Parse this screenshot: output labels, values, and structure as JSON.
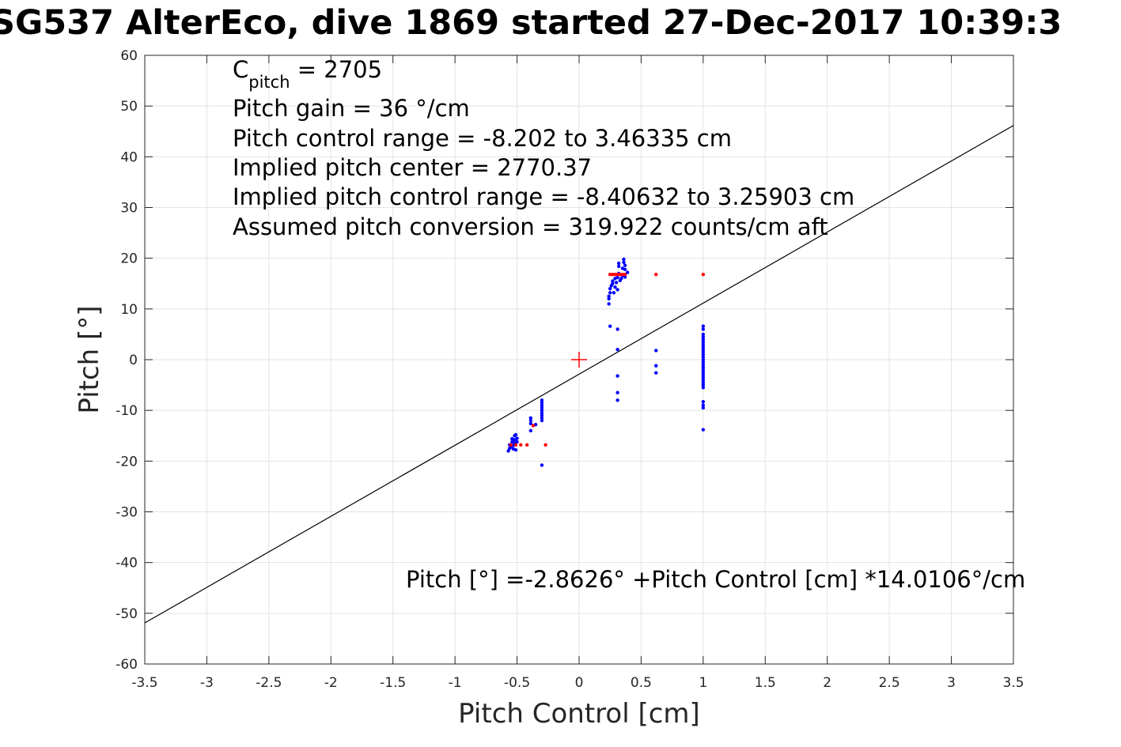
{
  "chart_data": {
    "type": "scatter",
    "title": "SG537 AlterEco, dive 1869 started 27-Dec-2017 10:39:3",
    "xlabel": "Pitch Control [cm]",
    "ylabel": "Pitch [°]",
    "xlim": [
      -3.5,
      3.5
    ],
    "ylim": [
      -60,
      60
    ],
    "grid": true,
    "x_ticks": [
      -3.5,
      -3,
      -2.5,
      -2,
      -1.5,
      -1,
      -0.5,
      0,
      0.5,
      1,
      1.5,
      2,
      2.5,
      3,
      3.5
    ],
    "x_tick_labels": [
      "-3.5",
      "-3",
      "-2.5",
      "-2",
      "-1.5",
      "-1",
      "-0.5",
      "0",
      "0.5",
      "1",
      "1.5",
      "2",
      "2.5",
      "3",
      "3.5"
    ],
    "y_ticks": [
      -60,
      -50,
      -40,
      -30,
      -20,
      -10,
      0,
      10,
      20,
      30,
      40,
      50,
      60
    ],
    "y_tick_labels": [
      "-60",
      "-50",
      "-40",
      "-30",
      "-20",
      "-10",
      "0",
      "10",
      "20",
      "30",
      "40",
      "50",
      "60"
    ],
    "fit_line": {
      "intercept": -2.8626,
      "slope": 14.0106,
      "color": "#000000"
    },
    "center_marker": {
      "x": 0,
      "y": 0,
      "color": "#ff0000"
    },
    "annotations": {
      "cpitch_base": "C",
      "cpitch_sub": "pitch",
      "cpitch_value": " = 2705",
      "pitch_gain": "Pitch gain = 36 °/cm",
      "control_range": "Pitch control range = -8.202 to 3.46335 cm",
      "implied_center": "Implied pitch center = 2770.37",
      "implied_range": "Implied pitch control range = -8.40632 to 3.25903 cm",
      "conversion": "Assumed pitch conversion = 319.922 counts/cm aft",
      "fit_equation": "Pitch [°] =-2.8626° +Pitch Control [cm] *14.0106°/cm"
    },
    "series": [
      {
        "color": "#0000ff",
        "points": [
          [
            -0.57,
            -18.0
          ],
          [
            -0.56,
            -17.5
          ],
          [
            -0.56,
            -16.8
          ],
          [
            -0.55,
            -17.2
          ],
          [
            -0.54,
            -16.2
          ],
          [
            -0.54,
            -15.6
          ],
          [
            -0.53,
            -17.6
          ],
          [
            -0.53,
            -16.9
          ],
          [
            -0.52,
            -15.0
          ],
          [
            -0.52,
            -15.8
          ],
          [
            -0.52,
            -16.5
          ],
          [
            -0.51,
            -17.8
          ],
          [
            -0.51,
            -14.8
          ],
          [
            -0.5,
            -15.5
          ],
          [
            -0.5,
            -16.2
          ],
          [
            -0.39,
            -11.5
          ],
          [
            -0.39,
            -12.0
          ],
          [
            -0.39,
            -12.6
          ],
          [
            -0.39,
            -14.0
          ],
          [
            -0.35,
            -12.8
          ],
          [
            -0.3,
            -8.0
          ],
          [
            -0.3,
            -8.5
          ],
          [
            -0.3,
            -9.0
          ],
          [
            -0.3,
            -9.5
          ],
          [
            -0.3,
            -10.0
          ],
          [
            -0.3,
            -10.5
          ],
          [
            -0.3,
            -11.0
          ],
          [
            -0.3,
            -11.5
          ],
          [
            -0.3,
            -12.0
          ],
          [
            -0.3,
            -20.8
          ],
          [
            0.24,
            11.0
          ],
          [
            0.24,
            12.0
          ],
          [
            0.24,
            12.5
          ],
          [
            0.25,
            13.2
          ],
          [
            0.25,
            14.0
          ],
          [
            0.26,
            14.6
          ],
          [
            0.27,
            15.0
          ],
          [
            0.27,
            15.5
          ],
          [
            0.28,
            13.2
          ],
          [
            0.29,
            14.3
          ],
          [
            0.29,
            16.0
          ],
          [
            0.3,
            15.2
          ],
          [
            0.31,
            16.2
          ],
          [
            0.31,
            13.8
          ],
          [
            0.32,
            17.0
          ],
          [
            0.32,
            19.0
          ],
          [
            0.32,
            18.4
          ],
          [
            0.33,
            15.6
          ],
          [
            0.34,
            16.0
          ],
          [
            0.35,
            18.0
          ],
          [
            0.35,
            16.6
          ],
          [
            0.36,
            19.8
          ],
          [
            0.36,
            19.2
          ],
          [
            0.37,
            18.6
          ],
          [
            0.37,
            17.8
          ],
          [
            0.37,
            16.3
          ],
          [
            0.39,
            17.2
          ],
          [
            0.25,
            6.6
          ],
          [
            0.31,
            6.0
          ],
          [
            0.31,
            2.0
          ],
          [
            0.31,
            -3.2
          ],
          [
            0.31,
            -6.5
          ],
          [
            0.31,
            -8.0
          ],
          [
            0.62,
            1.8
          ],
          [
            0.62,
            -1.2
          ],
          [
            0.62,
            -2.6
          ],
          [
            1.0,
            6.6
          ],
          [
            1.0,
            6.0
          ],
          [
            1.0,
            5.0
          ],
          [
            1.0,
            4.5
          ],
          [
            1.0,
            4.0
          ],
          [
            1.0,
            3.5
          ],
          [
            1.0,
            3.0
          ],
          [
            1.0,
            2.5
          ],
          [
            1.0,
            2.0
          ],
          [
            1.0,
            1.5
          ],
          [
            1.0,
            1.0
          ],
          [
            1.0,
            0.5
          ],
          [
            1.0,
            0.0
          ],
          [
            1.0,
            -0.5
          ],
          [
            1.0,
            -1.0
          ],
          [
            1.0,
            -1.5
          ],
          [
            1.0,
            -2.0
          ],
          [
            1.0,
            -2.5
          ],
          [
            1.0,
            -3.0
          ],
          [
            1.0,
            -3.5
          ],
          [
            1.0,
            -4.0
          ],
          [
            1.0,
            -4.5
          ],
          [
            1.0,
            -5.0
          ],
          [
            1.0,
            -5.5
          ],
          [
            1.0,
            -8.3
          ],
          [
            1.0,
            -9.0
          ],
          [
            1.0,
            -9.5
          ],
          [
            1.0,
            -13.8
          ]
        ]
      },
      {
        "color": "#ff0000",
        "points": [
          [
            -0.55,
            -16.8
          ],
          [
            -0.51,
            -16.8
          ],
          [
            -0.47,
            -16.8
          ],
          [
            -0.42,
            -16.8
          ],
          [
            -0.37,
            -13.0
          ],
          [
            -0.27,
            -16.8
          ],
          [
            0.25,
            16.8
          ],
          [
            0.27,
            16.8
          ],
          [
            0.29,
            16.8
          ],
          [
            0.31,
            16.8
          ],
          [
            0.33,
            16.8
          ],
          [
            0.35,
            16.8
          ],
          [
            0.37,
            16.8
          ],
          [
            0.62,
            16.8
          ],
          [
            1.0,
            16.8
          ]
        ]
      }
    ]
  }
}
